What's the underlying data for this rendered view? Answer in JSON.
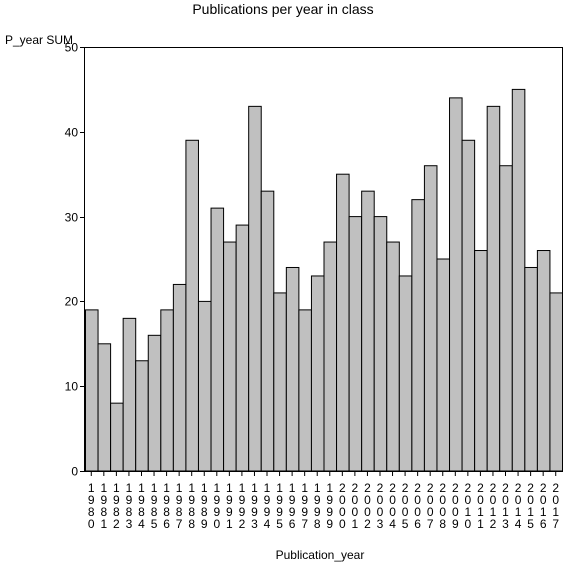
{
  "chart_data": {
    "type": "bar",
    "title": "Publications per year in class",
    "xlabel": "Publication_year",
    "ylabel": "P_year SUM",
    "ylim": [
      0,
      50
    ],
    "yticks": [
      0,
      10,
      20,
      30,
      40,
      50
    ],
    "grid": false,
    "bar_color": "#c0c0c0",
    "categories": [
      "1980",
      "1981",
      "1982",
      "1983",
      "1984",
      "1985",
      "1986",
      "1987",
      "1988",
      "1989",
      "1990",
      "1991",
      "1992",
      "1993",
      "1994",
      "1995",
      "1996",
      "1997",
      "1998",
      "1999",
      "2000",
      "2001",
      "2002",
      "2003",
      "2004",
      "2005",
      "2006",
      "2007",
      "2008",
      "2009",
      "2010",
      "2011",
      "2012",
      "2013",
      "2014",
      "2015",
      "2016",
      "2017"
    ],
    "values": [
      19,
      15,
      8,
      18,
      13,
      16,
      19,
      22,
      39,
      20,
      31,
      27,
      29,
      43,
      33,
      21,
      24,
      19,
      23,
      27,
      35,
      30,
      33,
      30,
      27,
      23,
      32,
      36,
      25,
      44,
      39,
      26,
      43,
      36,
      45,
      24,
      26,
      21
    ]
  }
}
